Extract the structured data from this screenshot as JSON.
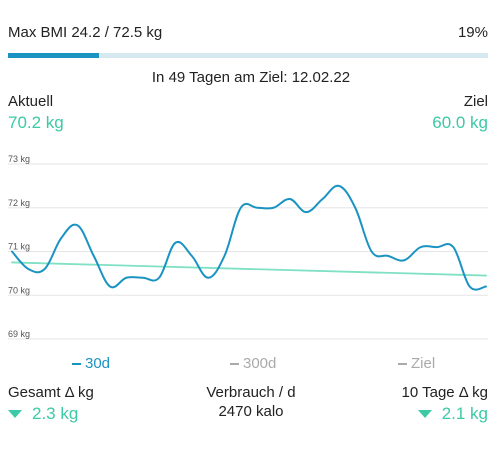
{
  "header": {
    "bmi_label": "Max BMI 24.2 / 72.5 kg",
    "progress_percent_label": "19%",
    "progress_fraction": 0.19
  },
  "goal": {
    "line": "In 49 Tagen am Ziel: 12.02.22"
  },
  "weights": {
    "current_label": "Aktuell",
    "current_value": "70.2 kg",
    "target_label": "Ziel",
    "target_value": "60.0 kg"
  },
  "chart_data": {
    "type": "line",
    "ylim": [
      69,
      73
    ],
    "y_ticks": [
      "73 kg",
      "72 kg",
      "71 kg",
      "70 kg",
      "69 kg"
    ],
    "grid": true,
    "series": [
      {
        "name": "30d",
        "color": "#1a93c2",
        "x": [
          0,
          1,
          2,
          3,
          4,
          5,
          6,
          7,
          8,
          9,
          10,
          11,
          12,
          13,
          14,
          15,
          16,
          17,
          18,
          19,
          20,
          21,
          22,
          23,
          24,
          25,
          26,
          27,
          28,
          29
        ],
        "values": [
          71.0,
          70.6,
          70.6,
          71.3,
          71.6,
          70.9,
          70.2,
          70.4,
          70.4,
          70.4,
          71.2,
          70.9,
          70.4,
          70.9,
          72.0,
          72.0,
          72.0,
          72.2,
          71.9,
          72.2,
          72.5,
          72.0,
          71.0,
          70.9,
          70.8,
          71.1,
          71.1,
          71.1,
          70.2,
          70.2
        ]
      },
      {
        "name": "trend",
        "color": "#7fe0c4",
        "x": [
          0,
          29
        ],
        "values": [
          70.75,
          70.45
        ]
      }
    ]
  },
  "legend": {
    "series_30d": "30d",
    "series_300d": "300d",
    "series_ziel": "Ziel"
  },
  "stats": {
    "total_label": "Gesamt Δ kg",
    "total_value": "2.3 kg",
    "usage_label": "Verbrauch / d",
    "usage_value": "2470 kalo",
    "ten_days_label": "10 Tage Δ kg",
    "ten_days_value": "2.1 kg"
  }
}
